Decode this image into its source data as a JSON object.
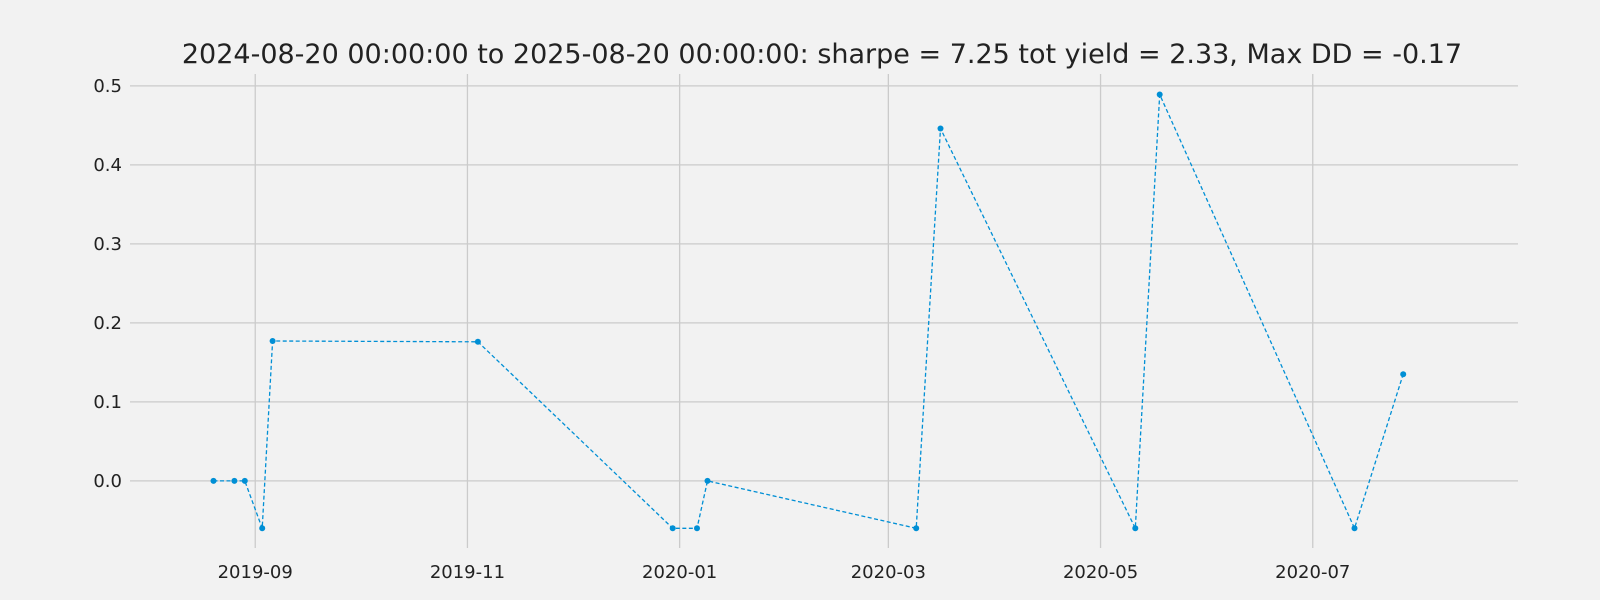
{
  "chart_data": {
    "type": "line",
    "title": "2024-08-20 00:00:00 to 2025-08-20 00:00:00: sharpe = 7.25 tot yield = 2.33, Max DD = -0.17",
    "xlabel": "",
    "ylabel": "",
    "x_axis_type": "date",
    "xlim": [
      "2019-07-27",
      "2020-08-29"
    ],
    "ylim": [
      -0.085,
      0.515
    ],
    "grid": true,
    "legend": "none",
    "x_ticks": [
      "2019-09",
      "2019-11",
      "2020-01",
      "2020-03",
      "2020-05",
      "2020-07"
    ],
    "x_tick_dates": [
      "2019-09-01",
      "2019-11-01",
      "2020-01-01",
      "2020-03-01",
      "2020-05-01",
      "2020-07-01"
    ],
    "y_ticks": [
      "0.0",
      "0.1",
      "0.2",
      "0.3",
      "0.4",
      "0.5"
    ],
    "y_tick_values": [
      0.0,
      0.1,
      0.2,
      0.3,
      0.4,
      0.5
    ],
    "series": [
      {
        "color": "#008fd5",
        "x": [
          "2019-08-20",
          "2019-08-26",
          "2019-08-29",
          "2019-09-03",
          "2019-09-06",
          "2019-11-04",
          "2019-12-30",
          "2020-01-06",
          "2020-01-09",
          "2020-03-09",
          "2020-03-16",
          "2020-05-11",
          "2020-05-18",
          "2020-07-13",
          "2020-07-27"
        ],
        "y": [
          0.0,
          0.0,
          0.0,
          -0.06,
          0.177,
          0.176,
          -0.06,
          -0.06,
          0.0,
          -0.06,
          0.446,
          -0.06,
          0.489,
          -0.06,
          0.135
        ]
      }
    ]
  }
}
